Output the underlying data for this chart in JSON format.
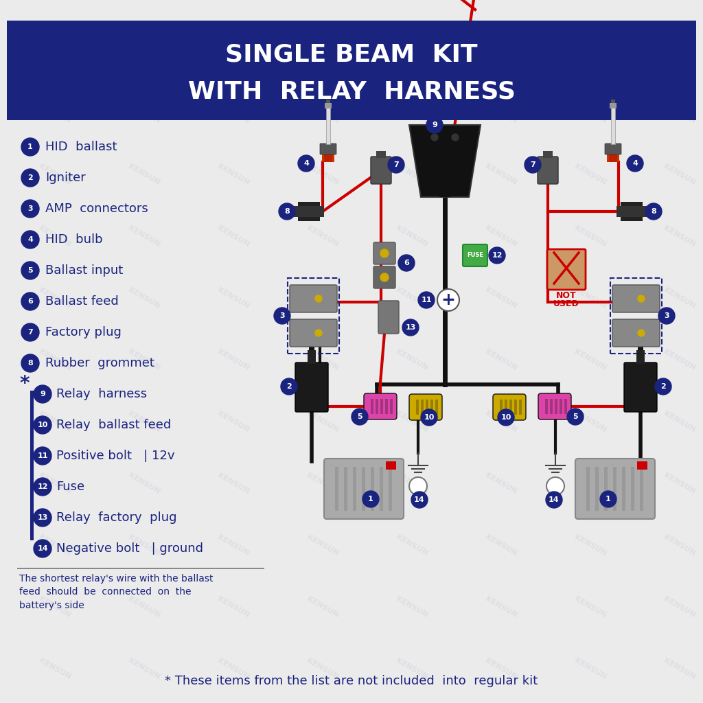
{
  "title_line1": "SINGLE BEAM  KIT",
  "title_line2": "WITH  RELAY  HARNESS",
  "title_bg_color": "#1a237e",
  "title_text_color": "#ffffff",
  "bg_color": "#ebebeb",
  "legend_items": [
    {
      "num": "1",
      "text": "HID  ballast"
    },
    {
      "num": "2",
      "text": "Igniter"
    },
    {
      "num": "3",
      "text": "AMP  connectors"
    },
    {
      "num": "4",
      "text": "HID  bulb"
    },
    {
      "num": "5",
      "text": "Ballast input"
    },
    {
      "num": "6",
      "text": "Ballast feed"
    },
    {
      "num": "7",
      "text": "Factory plug"
    },
    {
      "num": "8",
      "text": "Rubber  grommet"
    }
  ],
  "legend_items_starred": [
    {
      "num": "9",
      "text": "Relay  harness"
    },
    {
      "num": "10",
      "text": "Relay  ballast feed"
    },
    {
      "num": "11",
      "text": "Positive bolt   | 12v"
    },
    {
      "num": "12",
      "text": "Fuse"
    },
    {
      "num": "13",
      "text": "Relay  factory  plug"
    },
    {
      "num": "14",
      "text": "Negative bolt   | ground"
    }
  ],
  "footnote": "The shortest relay's wire with the ballast\nfeed  should  be  connected  on  the\nbattery's side",
  "bottom_note": "* These items from the list are not included  into  regular kit",
  "dark_blue": "#1a237e",
  "red_color": "#cc0000",
  "black_color": "#111111",
  "gray_color": "#808080",
  "yellow_color": "#ccaa00",
  "pink_color": "#dd44aa",
  "green_color": "#228822",
  "light_gray": "#aaaaaa"
}
